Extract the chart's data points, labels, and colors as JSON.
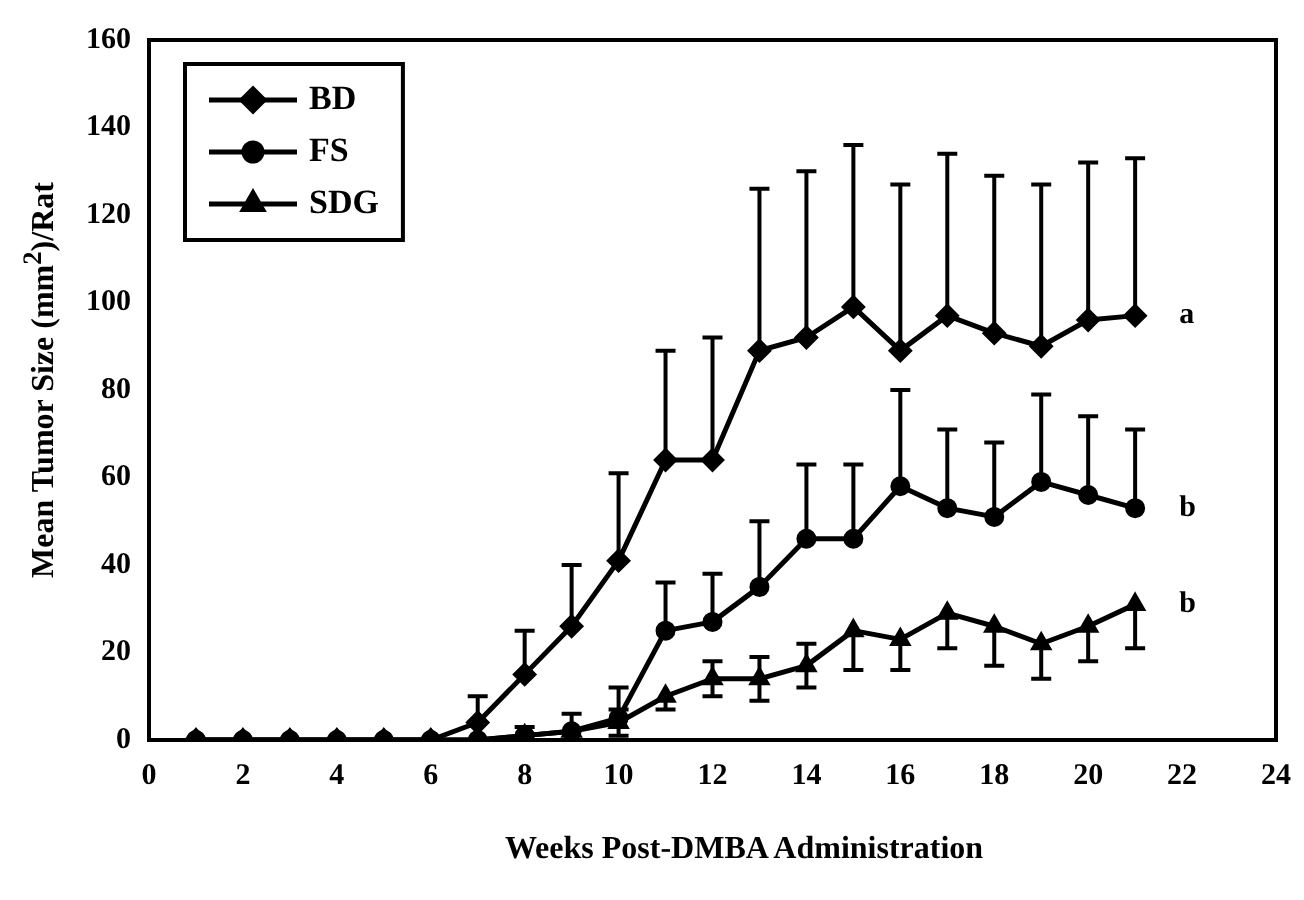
{
  "chart_data": {
    "type": "line",
    "xlabel": "Weeks Post-DMBA Administration",
    "ylabel": "Mean Tumor Size (mm$^{2}$)/Rat",
    "x": [
      1,
      2,
      3,
      4,
      5,
      6,
      7,
      8,
      9,
      10,
      11,
      12,
      13,
      14,
      15,
      16,
      17,
      18,
      19,
      20,
      21
    ],
    "xlim": [
      0,
      24
    ],
    "xticks": [
      0,
      2,
      4,
      6,
      8,
      10,
      12,
      14,
      16,
      18,
      20,
      22,
      24
    ],
    "ylim": [
      0,
      160
    ],
    "yticks": [
      0,
      20,
      40,
      60,
      80,
      100,
      120,
      140,
      160
    ],
    "legend": "top left",
    "grid": false,
    "series": [
      {
        "name": "BD",
        "color": "#000000",
        "marker": "diamond",
        "values": [
          0,
          0,
          0,
          0,
          0,
          0,
          4,
          15,
          26,
          41,
          64,
          64,
          89,
          92,
          99,
          89,
          97,
          93,
          90,
          96,
          97
        ],
        "errors": [
          null,
          null,
          null,
          null,
          null,
          null,
          [
            4,
            10
          ],
          [
            15,
            25
          ],
          [
            26,
            40
          ],
          [
            41,
            61
          ],
          [
            64,
            89
          ],
          [
            64,
            92
          ],
          [
            89,
            126
          ],
          [
            92,
            130
          ],
          [
            99,
            136
          ],
          [
            89,
            127
          ],
          [
            97,
            134
          ],
          [
            93,
            129
          ],
          [
            90,
            127
          ],
          [
            96,
            132
          ],
          [
            97,
            133
          ]
        ]
      },
      {
        "name": "FS",
        "color": "#000000",
        "marker": "circle",
        "values": [
          0,
          0,
          0,
          0,
          0,
          0,
          0,
          1,
          2,
          5,
          25,
          27,
          35,
          46,
          46,
          58,
          53,
          51,
          59,
          56,
          53
        ],
        "errors": [
          null,
          null,
          null,
          null,
          null,
          null,
          null,
          [
            1,
            3
          ],
          [
            2,
            6
          ],
          [
            5,
            12
          ],
          [
            25,
            36
          ],
          [
            27,
            38
          ],
          [
            35,
            50
          ],
          [
            46,
            63
          ],
          [
            46,
            63
          ],
          [
            58,
            80
          ],
          [
            53,
            71
          ],
          [
            51,
            68
          ],
          [
            59,
            79
          ],
          [
            56,
            74
          ],
          [
            53,
            71
          ]
        ]
      },
      {
        "name": "SDG",
        "color": "#000000",
        "marker": "triangle",
        "values": [
          0,
          0,
          0,
          0,
          0,
          0,
          0,
          1,
          2,
          4,
          10,
          14,
          14,
          17,
          25,
          23,
          29,
          26,
          22,
          26,
          31
        ],
        "errors": [
          null,
          null,
          null,
          null,
          null,
          null,
          null,
          null,
          null,
          [
            1,
            7
          ],
          [
            7,
            10
          ],
          [
            10,
            18
          ],
          [
            9,
            19
          ],
          [
            12,
            22
          ],
          [
            16,
            25
          ],
          [
            16,
            23
          ],
          [
            21,
            29
          ],
          [
            17,
            26
          ],
          [
            14,
            22
          ],
          [
            18,
            26
          ],
          [
            21,
            31
          ]
        ]
      }
    ],
    "annotations": [
      "a",
      "b",
      "b"
    ]
  }
}
